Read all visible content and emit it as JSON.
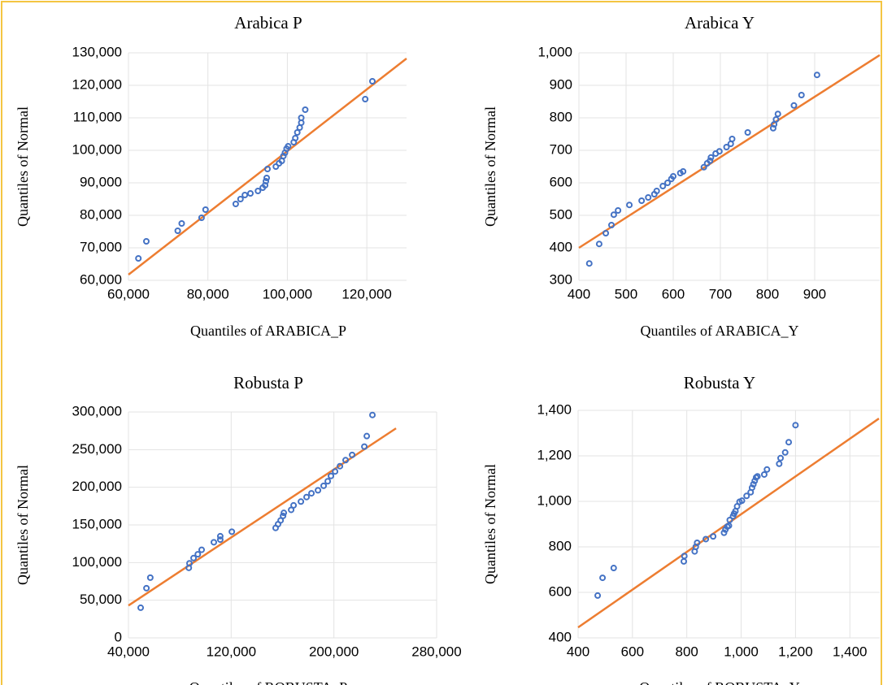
{
  "chart_data": [
    {
      "type": "scatter",
      "title": "Arabica P",
      "x_label": "Quantiles of ARABICA_P",
      "y_label": "Quantiles of Normal",
      "xlim": [
        60000,
        130000
      ],
      "ylim": [
        60000,
        130000
      ],
      "xticks": [
        {
          "value": 60000,
          "label": "60,000"
        },
        {
          "value": 80000,
          "label": "80,000"
        },
        {
          "value": 100000,
          "label": "100,000"
        },
        {
          "value": 120000,
          "label": "120,000"
        }
      ],
      "yticks": [
        {
          "value": 60000,
          "label": "60,000"
        },
        {
          "value": 70000,
          "label": "70,000"
        },
        {
          "value": 80000,
          "label": "80,000"
        },
        {
          "value": 90000,
          "label": "90,000"
        },
        {
          "value": 100000,
          "label": "100,000"
        },
        {
          "value": 110000,
          "label": "110,000"
        },
        {
          "value": 120000,
          "label": "120,000"
        },
        {
          "value": 130000,
          "label": "130,000"
        }
      ],
      "grid": true,
      "color": "#4472c4",
      "x": [
        62500,
        64500,
        72400,
        73400,
        78400,
        79400,
        87000,
        88200,
        89300,
        90700,
        92600,
        93800,
        94400,
        94600,
        94800,
        95000,
        97100,
        97900,
        98600,
        99000,
        99400,
        99800,
        100200,
        101600,
        102000,
        102500,
        103100,
        103500,
        103500,
        104500,
        119600,
        121400
      ],
      "values": [
        66750,
        72000,
        75250,
        77500,
        79250,
        81750,
        83500,
        85000,
        86250,
        86750,
        87500,
        88500,
        89250,
        90500,
        91500,
        94250,
        95000,
        96000,
        96750,
        98250,
        99250,
        100500,
        101250,
        102500,
        103750,
        105500,
        107000,
        108500,
        110000,
        112500,
        115750,
        121250
      ],
      "reference_line": {
        "x": [
          60000,
          130000
        ],
        "values": [
          61750,
          128250
        ],
        "color": "#ed7d31"
      }
    },
    {
      "type": "scatter",
      "title": "Arabica Y",
      "x_label": "Quantiles of ARABICA_Y",
      "y_label": "Quantiles of Normal",
      "xlim": [
        400,
        1038
      ],
      "ylim": [
        300,
        1000
      ],
      "xticks": [
        400,
        500,
        600,
        700,
        800,
        900
      ],
      "yticks": [
        300,
        400,
        500,
        600,
        700,
        800,
        900,
        {
          "value": 1000,
          "label": "1,000"
        }
      ],
      "grid": true,
      "color": "#4472c4",
      "x": [
        422,
        443,
        457,
        469,
        474,
        483,
        507,
        533,
        547,
        560,
        565,
        578,
        588,
        596,
        600,
        615,
        621,
        665,
        672,
        678,
        680,
        690,
        698,
        713,
        722,
        725,
        758,
        812,
        814,
        818,
        822,
        856,
        872,
        905
      ],
      "values": [
        352,
        412,
        445,
        470,
        502,
        515,
        532,
        545,
        555,
        565,
        575,
        590,
        600,
        612,
        620,
        630,
        635,
        648,
        660,
        668,
        678,
        690,
        697,
        710,
        720,
        735,
        755,
        768,
        780,
        795,
        812,
        838,
        870,
        932
      ],
      "reference_line": {
        "x": [
          400,
          1038
        ],
        "values": [
          400,
          993
        ],
        "color": "#ed7d31"
      }
    },
    {
      "type": "scatter",
      "title": "Robusta P",
      "x_label": "Quantiles of ROBUSTA_P",
      "y_label": "Quantiles of Normal",
      "xlim": [
        40000,
        280000
      ],
      "ylim": [
        0,
        300000
      ],
      "xticks": [
        {
          "value": 40000,
          "label": "40,000"
        },
        {
          "value": 120000,
          "label": "120,000"
        },
        {
          "value": 200000,
          "label": "200,000"
        },
        {
          "value": 280000,
          "label": "280,000"
        }
      ],
      "yticks": [
        0,
        {
          "value": 50000,
          "label": "50,000"
        },
        {
          "value": 100000,
          "label": "100,000"
        },
        {
          "value": 150000,
          "label": "150,000"
        },
        {
          "value": 200000,
          "label": "200,000"
        },
        {
          "value": 250000,
          "label": "250,000"
        },
        {
          "value": 300000,
          "label": "300,000"
        }
      ],
      "grid": true,
      "color": "#4472c4",
      "x": [
        49500,
        54000,
        57000,
        87000,
        87500,
        90700,
        94000,
        97000,
        106500,
        111500,
        111500,
        120500,
        154600,
        156500,
        158500,
        160400,
        161000,
        166700,
        168600,
        174300,
        178700,
        182500,
        187600,
        192000,
        195200,
        197700,
        200900,
        204700,
        209100,
        214200,
        223700,
        225600,
        230000
      ],
      "values": [
        40000,
        66000,
        80000,
        93000,
        99000,
        106000,
        111000,
        117000,
        127000,
        130500,
        135000,
        141000,
        146000,
        151000,
        156000,
        162000,
        166000,
        170000,
        176000,
        181000,
        187000,
        192000,
        196000,
        202000,
        208000,
        215000,
        221000,
        228000,
        236000,
        243000,
        254000,
        268000,
        296000
      ],
      "reference_line": {
        "x": [
          40000,
          248400
        ],
        "values": [
          43000,
          278300
        ],
        "color": "#ed7d31"
      }
    },
    {
      "type": "scatter",
      "title": "Robusta Y",
      "x_label": "Quantiles of ROBUSTA_Y",
      "y_label": "Quantiles of Normal",
      "xlim": [
        400,
        1510
      ],
      "ylim": [
        400,
        1400
      ],
      "xticks": [
        400,
        600,
        800,
        {
          "value": 1000,
          "label": "1,000"
        },
        {
          "value": 1200,
          "label": "1,200"
        },
        {
          "value": 1400,
          "label": "1,400"
        }
      ],
      "yticks": [
        400,
        600,
        800,
        {
          "value": 1000,
          "label": "1,000"
        },
        {
          "value": 1200,
          "label": "1,200"
        },
        {
          "value": 1400,
          "label": "1,400"
        }
      ],
      "grid": true,
      "color": "#4472c4",
      "x": [
        472,
        490,
        531,
        789,
        791,
        829,
        833,
        838,
        870,
        897,
        937,
        942,
        949,
        955,
        958,
        970,
        974,
        979,
        985,
        994,
        1003,
        1020,
        1035,
        1040,
        1045,
        1050,
        1055,
        1060,
        1085,
        1095,
        1140,
        1145,
        1162,
        1175,
        1200
      ],
      "values": [
        586,
        664,
        707,
        736,
        760,
        780,
        800,
        818,
        834,
        846,
        862,
        876,
        889,
        893,
        918,
        935,
        946,
        957,
        978,
        998,
        1003,
        1024,
        1040,
        1060,
        1075,
        1090,
        1105,
        1110,
        1118,
        1140,
        1165,
        1190,
        1215,
        1260,
        1335
      ],
      "reference_line": {
        "x": [
          400,
          1507
        ],
        "values": [
          446,
          1364
        ],
        "color": "#ed7d31"
      }
    }
  ]
}
